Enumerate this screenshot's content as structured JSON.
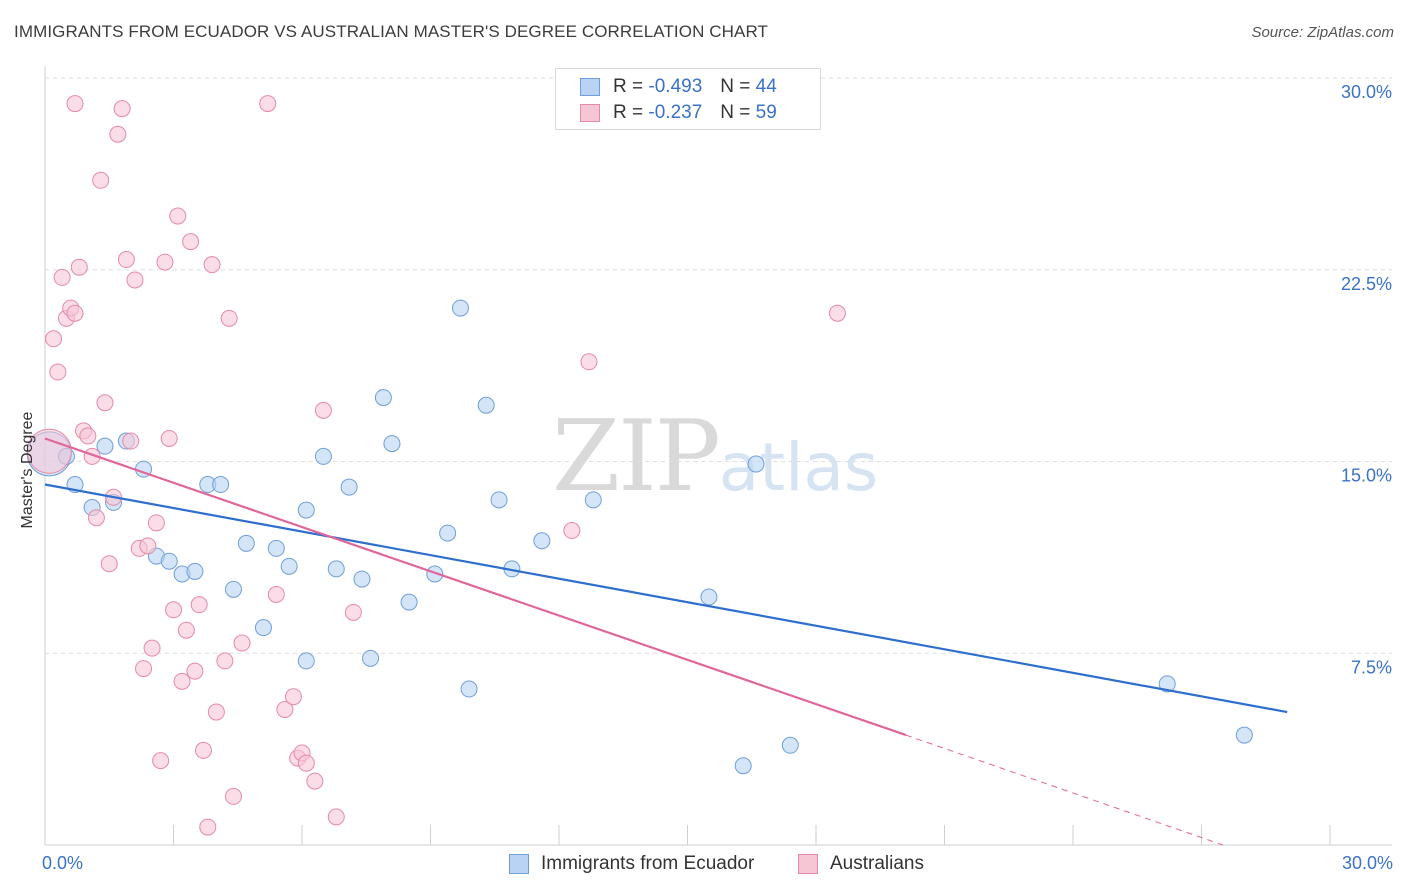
{
  "header": {
    "title": "IMMIGRANTS FROM ECUADOR VS AUSTRALIAN MASTER'S DEGREE CORRELATION CHART",
    "source": "Source: ZipAtlas.com"
  },
  "watermark": {
    "zip": "ZIP",
    "atlas": "atlas"
  },
  "legend": {
    "rows": [
      {
        "r_label": "R =",
        "r_value": "-0.493",
        "n_label": "N =",
        "n_value": "44"
      },
      {
        "r_label": "R =",
        "r_value": "-0.237",
        "n_label": "N =",
        "n_value": "59"
      }
    ]
  },
  "colors": {
    "blue_fill": "#b8d3f3",
    "blue_stroke": "#6f9fd8",
    "blue_line": "#2e6fce",
    "pink_fill": "#f7c6d5",
    "pink_stroke": "#e58aa8",
    "pink_line": "#e0669a",
    "tick_label": "#3a72c8",
    "grid": "#dedede"
  },
  "chart_data": {
    "type": "scatter",
    "title": "IMMIGRANTS FROM ECUADOR VS AUSTRALIAN MASTER'S DEGREE CORRELATION CHART",
    "xlabel": "",
    "ylabel": "Master's Degree",
    "xlim": [
      0,
      30
    ],
    "ylim": [
      0,
      30
    ],
    "x_tick_labels": [
      "0.0%",
      "30.0%"
    ],
    "y_ticks": [
      7.5,
      15.0,
      22.5,
      30.0
    ],
    "y_tick_labels": [
      "7.5%",
      "15.0%",
      "22.5%",
      "30.0%"
    ],
    "grid": true,
    "legend_position": "bottom-center",
    "series": [
      {
        "name": "Immigrants from Ecuador",
        "r": -0.493,
        "n": 44,
        "trend": {
          "x": [
            0,
            29.0
          ],
          "y": [
            14.1,
            5.2
          ]
        },
        "points": [
          {
            "x": 0.1,
            "y": 15.3,
            "big": true
          },
          {
            "x": 0.5,
            "y": 15.2
          },
          {
            "x": 0.7,
            "y": 14.1
          },
          {
            "x": 1.1,
            "y": 13.2
          },
          {
            "x": 1.4,
            "y": 15.6
          },
          {
            "x": 1.6,
            "y": 13.4
          },
          {
            "x": 1.9,
            "y": 15.8
          },
          {
            "x": 2.3,
            "y": 14.7
          },
          {
            "x": 2.6,
            "y": 11.3
          },
          {
            "x": 2.9,
            "y": 11.1
          },
          {
            "x": 3.2,
            "y": 10.6
          },
          {
            "x": 3.5,
            "y": 10.7
          },
          {
            "x": 3.8,
            "y": 14.1
          },
          {
            "x": 4.1,
            "y": 14.1
          },
          {
            "x": 4.4,
            "y": 10.0
          },
          {
            "x": 4.7,
            "y": 11.8
          },
          {
            "x": 5.1,
            "y": 8.5
          },
          {
            "x": 5.4,
            "y": 11.6
          },
          {
            "x": 5.7,
            "y": 10.9
          },
          {
            "x": 6.1,
            "y": 13.1
          },
          {
            "x": 6.1,
            "y": 7.2
          },
          {
            "x": 6.5,
            "y": 15.2
          },
          {
            "x": 6.8,
            "y": 10.8
          },
          {
            "x": 7.1,
            "y": 14.0
          },
          {
            "x": 7.4,
            "y": 10.4
          },
          {
            "x": 7.6,
            "y": 7.3
          },
          {
            "x": 7.9,
            "y": 17.5
          },
          {
            "x": 8.1,
            "y": 15.7
          },
          {
            "x": 8.5,
            "y": 9.5
          },
          {
            "x": 9.1,
            "y": 10.6
          },
          {
            "x": 9.4,
            "y": 12.2
          },
          {
            "x": 9.7,
            "y": 21.0
          },
          {
            "x": 9.9,
            "y": 6.1
          },
          {
            "x": 10.3,
            "y": 17.2
          },
          {
            "x": 10.6,
            "y": 13.5
          },
          {
            "x": 10.9,
            "y": 10.8
          },
          {
            "x": 11.6,
            "y": 11.9
          },
          {
            "x": 12.8,
            "y": 13.5
          },
          {
            "x": 15.5,
            "y": 9.7
          },
          {
            "x": 16.3,
            "y": 3.1
          },
          {
            "x": 16.6,
            "y": 14.9
          },
          {
            "x": 17.4,
            "y": 3.9
          },
          {
            "x": 26.2,
            "y": 6.3
          },
          {
            "x": 28.0,
            "y": 4.3
          }
        ]
      },
      {
        "name": "Australians",
        "r": -0.237,
        "n": 59,
        "trend": {
          "x": [
            0,
            20.1
          ],
          "y": [
            15.9,
            4.3
          ]
        },
        "trend_dashed": {
          "x": [
            20.1,
            27.5
          ],
          "y": [
            4.3,
            0.0
          ]
        },
        "points": [
          {
            "x": 0.1,
            "y": 15.4,
            "big": true
          },
          {
            "x": 0.2,
            "y": 19.8
          },
          {
            "x": 0.3,
            "y": 18.5
          },
          {
            "x": 0.4,
            "y": 22.2
          },
          {
            "x": 0.5,
            "y": 20.6
          },
          {
            "x": 0.6,
            "y": 21.0
          },
          {
            "x": 0.7,
            "y": 20.8
          },
          {
            "x": 0.7,
            "y": 29.0
          },
          {
            "x": 0.8,
            "y": 22.6
          },
          {
            "x": 0.9,
            "y": 16.2
          },
          {
            "x": 1.0,
            "y": 16.0
          },
          {
            "x": 1.1,
            "y": 15.2
          },
          {
            "x": 1.2,
            "y": 12.8
          },
          {
            "x": 1.3,
            "y": 26.0
          },
          {
            "x": 1.4,
            "y": 17.3
          },
          {
            "x": 1.5,
            "y": 11.0
          },
          {
            "x": 1.6,
            "y": 13.6
          },
          {
            "x": 1.7,
            "y": 27.8
          },
          {
            "x": 1.8,
            "y": 28.8
          },
          {
            "x": 1.9,
            "y": 22.9
          },
          {
            "x": 2.0,
            "y": 15.8
          },
          {
            "x": 2.1,
            "y": 22.1
          },
          {
            "x": 2.2,
            "y": 11.6
          },
          {
            "x": 2.3,
            "y": 6.9
          },
          {
            "x": 2.4,
            "y": 11.7
          },
          {
            "x": 2.5,
            "y": 7.7
          },
          {
            "x": 2.6,
            "y": 12.6
          },
          {
            "x": 2.7,
            "y": 3.3
          },
          {
            "x": 2.8,
            "y": 22.8
          },
          {
            "x": 2.9,
            "y": 15.9
          },
          {
            "x": 3.0,
            "y": 9.2
          },
          {
            "x": 3.1,
            "y": 24.6
          },
          {
            "x": 3.2,
            "y": 6.4
          },
          {
            "x": 3.3,
            "y": 8.4
          },
          {
            "x": 3.4,
            "y": 23.6
          },
          {
            "x": 3.5,
            "y": 6.8
          },
          {
            "x": 3.6,
            "y": 9.4
          },
          {
            "x": 3.7,
            "y": 3.7
          },
          {
            "x": 3.8,
            "y": 0.7
          },
          {
            "x": 3.9,
            "y": 22.7
          },
          {
            "x": 4.0,
            "y": 5.2
          },
          {
            "x": 4.2,
            "y": 7.2
          },
          {
            "x": 4.3,
            "y": 20.6
          },
          {
            "x": 4.4,
            "y": 1.9
          },
          {
            "x": 4.6,
            "y": 7.9
          },
          {
            "x": 5.2,
            "y": 29.0
          },
          {
            "x": 5.4,
            "y": 9.8
          },
          {
            "x": 5.6,
            "y": 5.3
          },
          {
            "x": 5.8,
            "y": 5.8
          },
          {
            "x": 5.9,
            "y": 3.4
          },
          {
            "x": 6.0,
            "y": 3.6
          },
          {
            "x": 6.1,
            "y": 3.2
          },
          {
            "x": 6.3,
            "y": 2.5
          },
          {
            "x": 6.5,
            "y": 17.0
          },
          {
            "x": 6.8,
            "y": 1.1
          },
          {
            "x": 7.2,
            "y": 9.1
          },
          {
            "x": 12.3,
            "y": 12.3
          },
          {
            "x": 12.7,
            "y": 18.9
          },
          {
            "x": 18.5,
            "y": 20.8
          }
        ]
      }
    ]
  }
}
